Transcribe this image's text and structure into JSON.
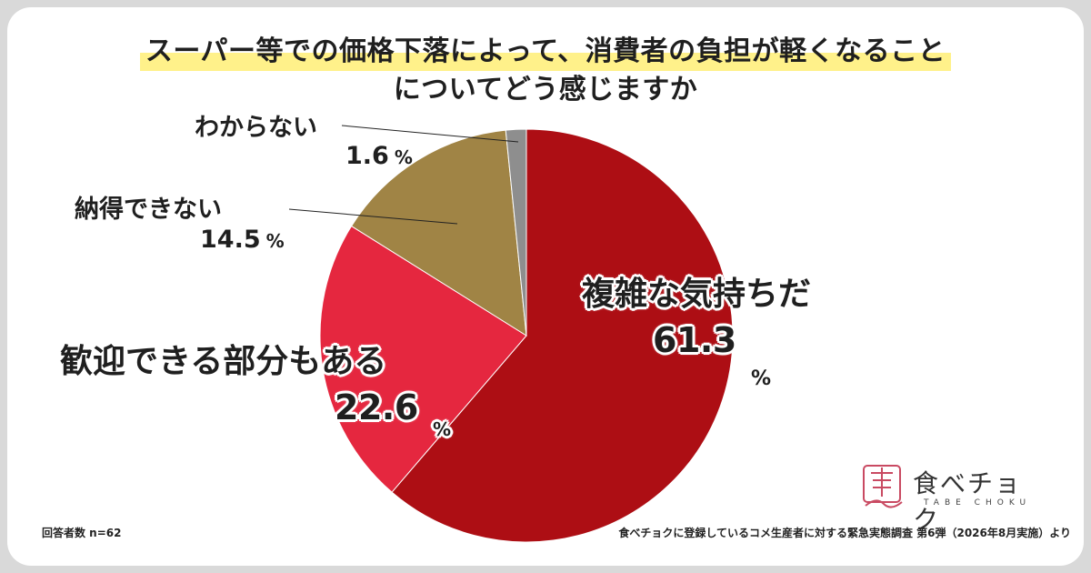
{
  "title_lines": [
    "スーパー等での価格下落によって、消費者の負担が軽くなること",
    "についてどう感じますか"
  ],
  "chart_data": {
    "type": "pie",
    "title": "スーパー等での価格下落によって、消費者の負担が軽くなることについてどう感じますか",
    "start": "12 o'clock, clockwise",
    "slices": [
      {
        "label": "複雑な気持ちだ",
        "value": 61.3,
        "value_text": "61.3",
        "color": "#ad0e14"
      },
      {
        "label": "歓迎できる部分もある",
        "value": 22.6,
        "value_text": "22.6",
        "color": "#e5273f"
      },
      {
        "label": "納得できない",
        "value": 14.5,
        "value_text": "14.5",
        "color": "#a08445"
      },
      {
        "label": "わからない",
        "value": 1.6,
        "value_text": "1.6",
        "color": "#8e8e8e"
      }
    ],
    "unit": "%"
  },
  "footer": {
    "n_label": "回答者数 n=62",
    "source": "食べチョクに登録しているコメ生産者に対する緊急実態調査 第6弾（2026年8月実施）より"
  },
  "logo": {
    "name": "食べチョク",
    "sub": "TABE CHOKU"
  }
}
